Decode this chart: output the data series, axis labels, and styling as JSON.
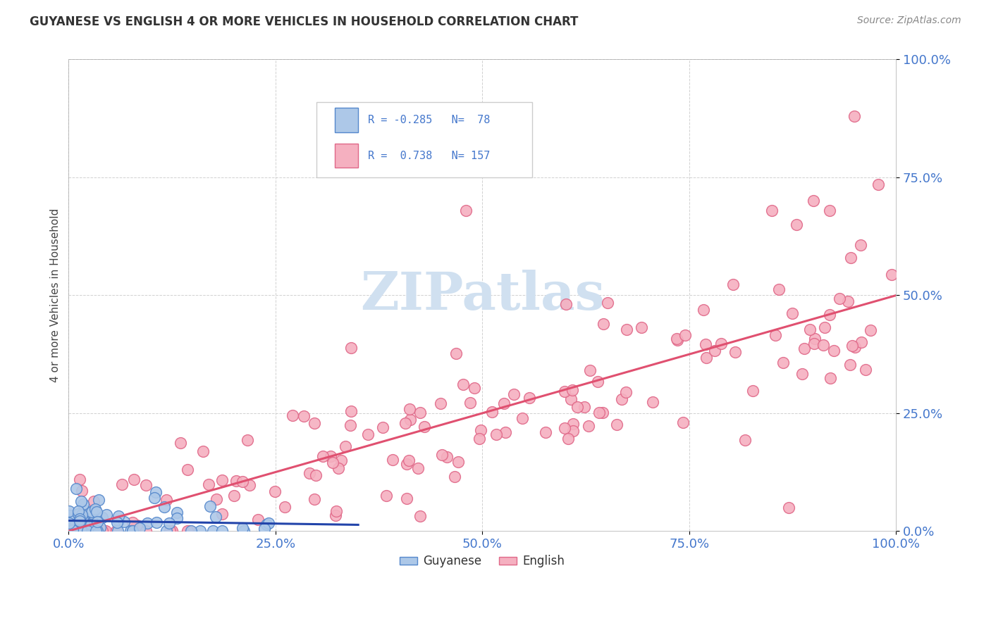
{
  "title": "GUYANESE VS ENGLISH 4 OR MORE VEHICLES IN HOUSEHOLD CORRELATION CHART",
  "source": "Source: ZipAtlas.com",
  "ylabel": "4 or more Vehicles in Household",
  "xlim": [
    0,
    100
  ],
  "ylim": [
    0,
    100
  ],
  "xtick_labels": [
    "0.0%",
    "25.0%",
    "50.0%",
    "75.0%",
    "100.0%"
  ],
  "xtick_positions": [
    0,
    25,
    50,
    75,
    100
  ],
  "ytick_labels": [
    "0.0%",
    "25.0%",
    "50.0%",
    "75.0%",
    "100.0%"
  ],
  "ytick_positions": [
    0,
    25,
    50,
    75,
    100
  ],
  "guyanese_color": "#adc8e8",
  "english_color": "#f5b0c0",
  "guyanese_edge": "#5588cc",
  "english_edge": "#e06888",
  "legend_guyanese_R": "-0.285",
  "legend_guyanese_N": "78",
  "legend_english_R": "0.738",
  "legend_english_N": "157",
  "background_color": "#ffffff",
  "guyanese_line_color": "#2244aa",
  "english_line_color": "#e05070",
  "tick_color": "#4477cc",
  "title_color": "#333333",
  "source_color": "#888888",
  "ylabel_color": "#444444",
  "watermark_color": "#d0e0f0",
  "grid_color": "#cccccc"
}
